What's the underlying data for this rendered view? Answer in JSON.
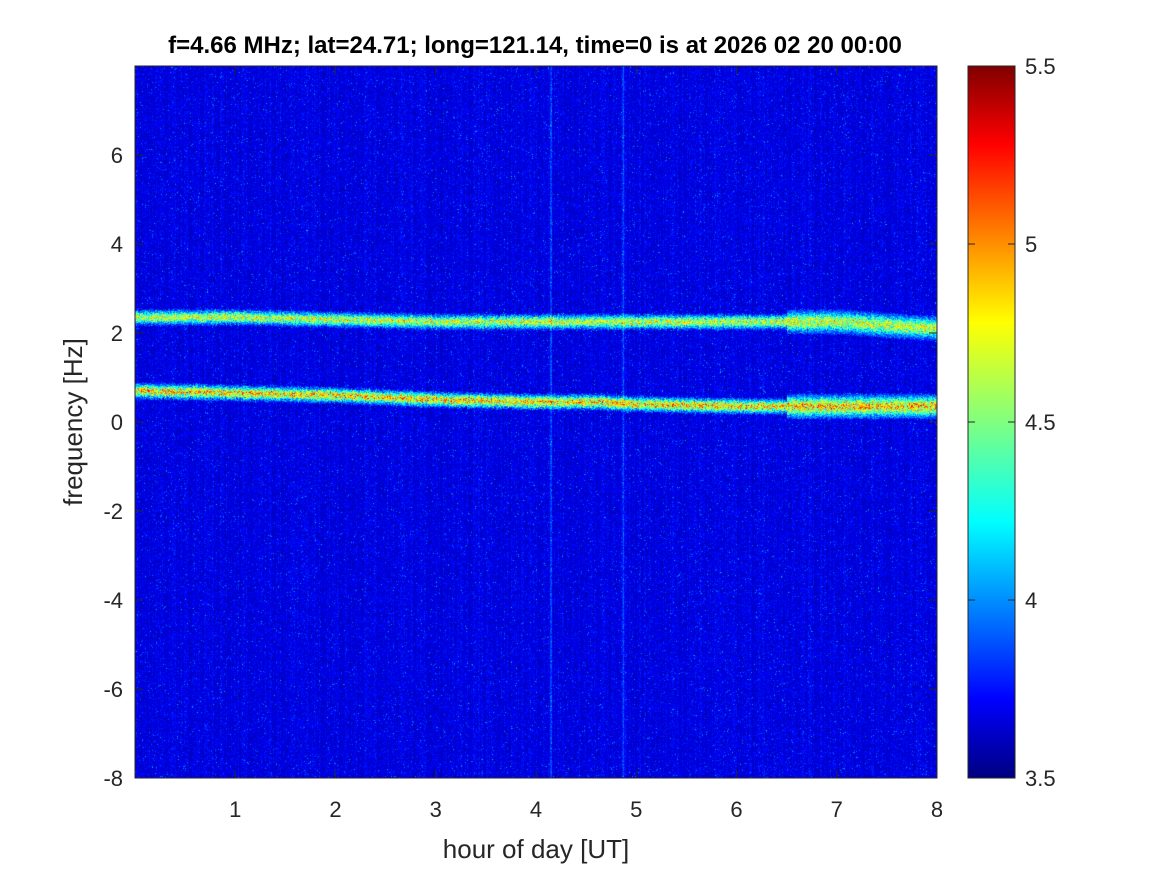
{
  "chart_data": {
    "type": "heatmap",
    "title": "f=4.66 MHz;  lat=24.71; long=121.14, time=0 is at 2026 02 20 00:00",
    "xlabel": "hour of day [UT]",
    "ylabel": "frequency [Hz]",
    "xlim": [
      0,
      8
    ],
    "ylim": [
      -8,
      8
    ],
    "xticks": [
      1,
      2,
      3,
      4,
      5,
      6,
      7,
      8
    ],
    "xtick_labels": [
      "1",
      "2",
      "3",
      "4",
      "5",
      "6",
      "7",
      "8"
    ],
    "yticks": [
      -8,
      -6,
      -4,
      -2,
      0,
      2,
      4,
      6
    ],
    "ytick_labels": [
      "-8",
      "-6",
      "-4",
      "-2",
      "0",
      "2",
      "4",
      "6"
    ],
    "colorbar": {
      "colormap": "jet",
      "clim": [
        3.5,
        5.5
      ],
      "ticks": [
        3.5,
        4,
        4.5,
        5,
        5.5
      ],
      "tick_labels": [
        "3.5",
        "4",
        "4.5",
        "5",
        "5.5"
      ]
    },
    "background_level": 3.6,
    "features": [
      {
        "kind": "horizontal-trace",
        "points": [
          [
            0,
            2.35
          ],
          [
            1,
            2.35
          ],
          [
            2,
            2.3
          ],
          [
            3,
            2.25
          ],
          [
            4,
            2.25
          ],
          [
            4.4,
            2.25
          ],
          [
            5,
            2.25
          ],
          [
            6,
            2.25
          ],
          [
            7,
            2.25
          ],
          [
            8,
            2.1
          ]
        ],
        "level": 4.7
      },
      {
        "kind": "horizontal-trace",
        "points": [
          [
            0,
            0.7
          ],
          [
            1,
            0.65
          ],
          [
            2,
            0.6
          ],
          [
            3,
            0.5
          ],
          [
            4,
            0.45
          ],
          [
            4.6,
            0.45
          ],
          [
            5,
            0.4
          ],
          [
            6,
            0.35
          ],
          [
            7,
            0.35
          ],
          [
            8,
            0.35
          ]
        ],
        "level": 4.9
      },
      {
        "kind": "vertical-streak",
        "x": 4.15,
        "level": 4.0
      },
      {
        "kind": "vertical-streak",
        "x": 4.87,
        "level": 3.9
      }
    ]
  }
}
